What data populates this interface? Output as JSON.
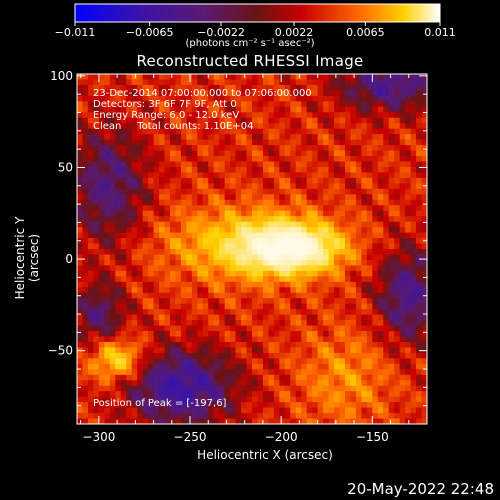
{
  "chart_data": {
    "type": "heatmap",
    "title": "Reconstructed RHESSI Image",
    "xlabel": "Heliocentric X (arcsec)",
    "ylabel": "Heliocentric Y (arcsec)",
    "xlim": [
      -312,
      -120
    ],
    "ylim": [
      -90,
      101
    ],
    "x_ticks": [
      -300,
      -250,
      -200,
      -150
    ],
    "y_ticks": [
      -50,
      0,
      50,
      100
    ],
    "colorbar": {
      "min": -0.011,
      "max": 0.011,
      "ticks": [
        "-0.011",
        "-0.0065",
        "-0.0022",
        "0.0022",
        "0.0065",
        "0.011"
      ],
      "units_label": "(photons cm⁻² s⁻¹ asec⁻²)"
    },
    "annotations": [
      "23-Dec-2014 07:00:00.000 to 07:06:00.000",
      "Detectors: 3F 6F 7F 9F, Att 0",
      "Energy Range: 6.0 - 12.0 keV",
      "Clean     Total counts: 1.10E+04"
    ],
    "peak_label": "Position of Peak = [-197,6]",
    "peak_position": [
      -197,
      6
    ],
    "peak_value": 0.011,
    "sources": [
      {
        "x": -195,
        "y": 6,
        "amp": 1.0,
        "sx": 18,
        "sy": 9
      },
      {
        "x": -220,
        "y": 8,
        "amp": 0.45,
        "sx": 30,
        "sy": 14
      },
      {
        "x": -290,
        "y": -55,
        "amp": 0.55,
        "sx": 10,
        "sy": 8
      },
      {
        "x": -255,
        "y": -70,
        "amp": -0.65,
        "sx": 20,
        "sy": 14
      },
      {
        "x": -130,
        "y": -20,
        "amp": -0.5,
        "sx": 12,
        "sy": 18
      },
      {
        "x": -295,
        "y": 40,
        "amp": -0.45,
        "sx": 14,
        "sy": 22
      },
      {
        "x": -140,
        "y": 95,
        "amp": -0.5,
        "sx": 20,
        "sy": 10
      },
      {
        "x": -300,
        "y": -30,
        "amp": -0.4,
        "sx": 10,
        "sy": 12
      },
      {
        "x": -165,
        "y": -65,
        "amp": 0.25,
        "sx": 18,
        "sy": 18
      }
    ]
  },
  "footer_date": "20-May-2022 22:48"
}
